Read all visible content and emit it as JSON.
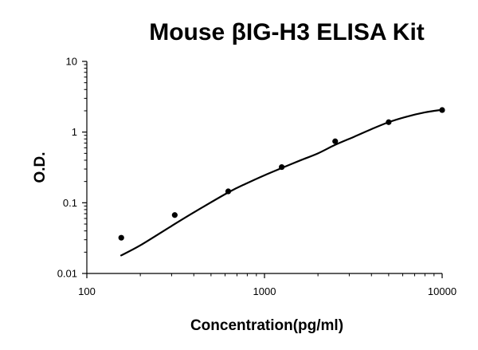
{
  "chart_data": {
    "type": "scatter",
    "title": "Mouse βIG-H3 ELISA Kit",
    "xlabel": "Concentration(pg/ml)",
    "ylabel": "O.D.",
    "x_scale": "log",
    "y_scale": "log",
    "xlim": [
      100,
      10000
    ],
    "ylim": [
      0.01,
      10
    ],
    "x_ticks": [
      {
        "value": 100,
        "label": "100"
      },
      {
        "value": 1000,
        "label": "1000"
      },
      {
        "value": 10000,
        "label": "10000"
      }
    ],
    "y_ticks": [
      {
        "value": 0.01,
        "label": "0.01"
      },
      {
        "value": 0.1,
        "label": "0.1"
      },
      {
        "value": 1,
        "label": "1"
      },
      {
        "value": 10,
        "label": "10"
      }
    ],
    "grid": false,
    "legend": "none",
    "series": [
      {
        "kind": "points",
        "x": [
          156.25,
          312.5,
          625,
          1250,
          2500,
          5000,
          10000
        ],
        "y": [
          0.032,
          0.067,
          0.145,
          0.32,
          0.74,
          1.38,
          2.05
        ]
      },
      {
        "kind": "fit_curve",
        "x": [
          156,
          200,
          300,
          400,
          625,
          800,
          1000,
          1250,
          1600,
          2000,
          2500,
          3200,
          4000,
          5000,
          6300,
          8000,
          10000
        ],
        "y": [
          0.018,
          0.025,
          0.047,
          0.073,
          0.14,
          0.19,
          0.245,
          0.31,
          0.4,
          0.5,
          0.66,
          0.86,
          1.1,
          1.38,
          1.65,
          1.9,
          2.07
        ]
      }
    ],
    "colors": {
      "marker": "#000000",
      "line": "#000000",
      "axis": "#000000"
    }
  }
}
